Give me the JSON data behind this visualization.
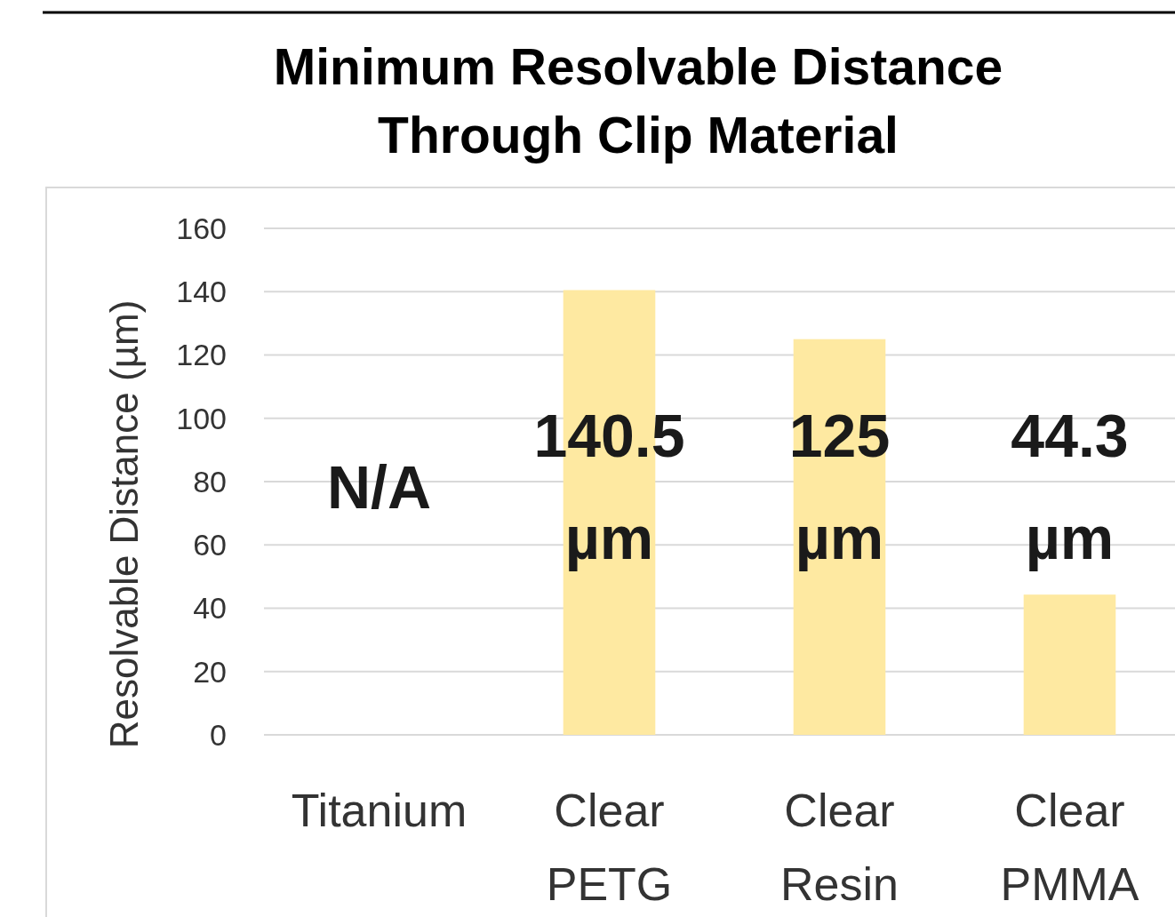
{
  "chart_data": {
    "type": "bar",
    "title": "Minimum Resolvable Distance\nThrough Clip Material",
    "ylabel": "Resolvable Distance (µm)",
    "categories": [
      "Titanium",
      "Clear\nPETG",
      "Clear\nResin",
      "Clear\nPMMA"
    ],
    "values": [
      null,
      140.5,
      125,
      44.3
    ],
    "value_labels": [
      "N/A",
      "140.5\nµm",
      "125\nµm",
      "44.3\nµm"
    ],
    "color": "#fee9a1",
    "ylim": [
      0,
      160
    ],
    "yticks": [
      0,
      20,
      40,
      60,
      80,
      100,
      120,
      140,
      160
    ],
    "grid": "y"
  }
}
